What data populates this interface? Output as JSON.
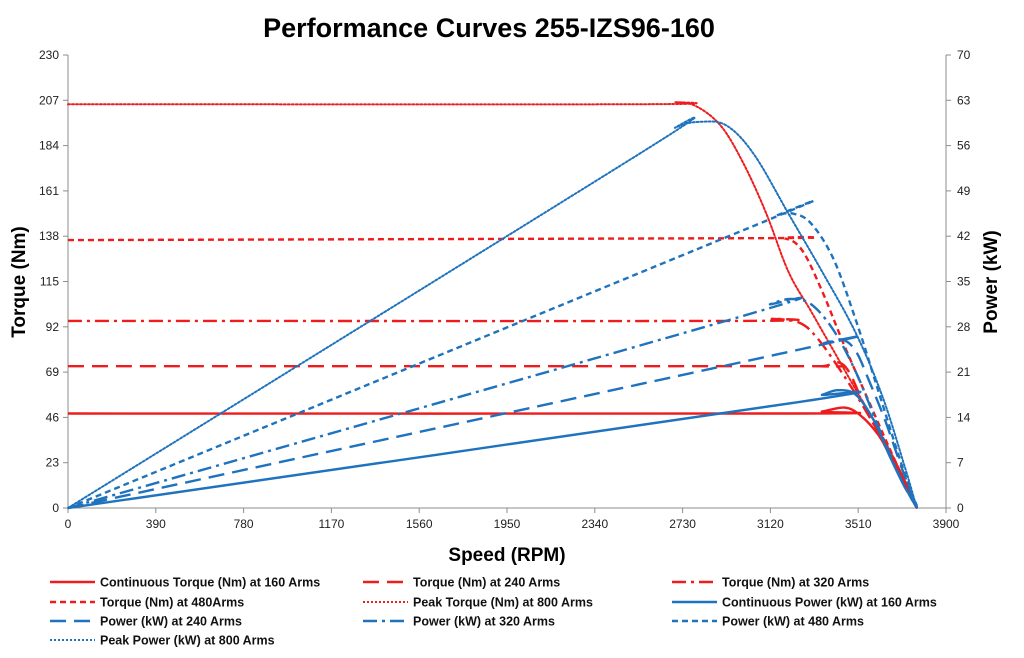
{
  "chart_data": {
    "type": "line",
    "title": "Performance Curves 255-IZS96-160",
    "xlabel": "Speed (RPM)",
    "ylabel": "Torque (Nm)",
    "y2label": "Power (kW)",
    "xlim": [
      0,
      3900
    ],
    "ylim": [
      0,
      230
    ],
    "y2lim": [
      0,
      70
    ],
    "x_ticks": [
      "0",
      "390",
      "780",
      "1170",
      "1560",
      "1950",
      "2340",
      "2730",
      "3120",
      "3510",
      "3900"
    ],
    "y_ticks": [
      "0",
      "23",
      "46",
      "69",
      "92",
      "115",
      "138",
      "161",
      "184",
      "207",
      "230"
    ],
    "y2_ticks": [
      "0",
      "7",
      "14",
      "21",
      "28",
      "35",
      "42",
      "49",
      "56",
      "63",
      "70"
    ],
    "grid": false,
    "legend_position": "bottom",
    "colors": {
      "torque": "#ee1c1c",
      "power": "#1f73be"
    },
    "series": [
      {
        "name": "Continuous Torque (Nm) at 160 Arms",
        "axis": "left",
        "color": "#ee1c1c",
        "style": "solid",
        "x": [
          0,
          3250,
          3350,
          3450,
          3520,
          3600,
          3680,
          3750,
          3770
        ],
        "y": [
          48,
          48,
          49,
          51,
          47,
          37,
          21,
          6,
          0
        ]
      },
      {
        "name": "Torque (Nm) at 240 Arms",
        "axis": "left",
        "color": "#ee1c1c",
        "style": "longdash",
        "x": [
          0,
          3150,
          3350,
          3420,
          3470,
          3530,
          3600,
          3680,
          3750,
          3770
        ],
        "y": [
          72,
          72,
          72,
          74,
          69,
          54,
          38,
          20,
          4,
          0
        ]
      },
      {
        "name": "Torque (Nm) at 320 Arms",
        "axis": "left",
        "color": "#ee1c1c",
        "style": "dashdot",
        "x": [
          0,
          2980,
          3130,
          3250,
          3330,
          3430,
          3530,
          3630,
          3720,
          3770
        ],
        "y": [
          95,
          95,
          96,
          94,
          86,
          70,
          52,
          32,
          12,
          0
        ]
      },
      {
        "name": "Torque (Nm) at 480Arms",
        "axis": "left",
        "color": "#ee1c1c",
        "style": "dash",
        "x": [
          0,
          3060,
          3180,
          3260,
          3350,
          3450,
          3550,
          3650,
          3730,
          3770
        ],
        "y": [
          136,
          137,
          137,
          131,
          110,
          82,
          56,
          30,
          10,
          0
        ]
      },
      {
        "name": "Peak Torque (Nm) at 800  Arms",
        "axis": "left",
        "color": "#ee1c1c",
        "style": "dot",
        "x": [
          0,
          2560,
          2700,
          2790,
          2900,
          3000,
          3100,
          3200,
          3300,
          3400,
          3500,
          3600,
          3700,
          3770
        ],
        "y": [
          205,
          205,
          206,
          204,
          194,
          175,
          150,
          120,
          100,
          80,
          60,
          40,
          18,
          0
        ]
      },
      {
        "name": "Continuous Power (kW) at 160 Arms",
        "axis": "right",
        "color": "#1f73be",
        "style": "solid",
        "x": [
          0,
          3250,
          3350,
          3420,
          3500,
          3580,
          3650,
          3720,
          3765,
          3770
        ],
        "y": [
          0,
          16.4,
          17.5,
          18.2,
          17.5,
          13.5,
          8,
          3,
          0.8,
          0
        ]
      },
      {
        "name": "Power (kW) at 240 Arms",
        "axis": "right",
        "color": "#1f73be",
        "style": "longdash",
        "x": [
          0,
          3250,
          3360,
          3440,
          3500,
          3560,
          3630,
          3700,
          3760,
          3770
        ],
        "y": [
          0,
          24.5,
          25.5,
          26,
          24.2,
          19.5,
          13.5,
          6.5,
          1,
          0
        ]
      },
      {
        "name": "Power (kW) at 320 Arms",
        "axis": "right",
        "color": "#1f73be",
        "style": "dashdot",
        "x": [
          0,
          3000,
          3120,
          3210,
          3300,
          3400,
          3500,
          3600,
          3700,
          3770
        ],
        "y": [
          0,
          29.7,
          31.5,
          32.3,
          31.5,
          27.5,
          21,
          12.5,
          4.5,
          0
        ]
      },
      {
        "name": "Power (kW) at 480 Arms",
        "axis": "right",
        "color": "#1f73be",
        "style": "dash",
        "x": [
          0,
          3060,
          3150,
          3220,
          3300,
          3400,
          3500,
          3600,
          3700,
          3770
        ],
        "y": [
          0,
          43.8,
          45.2,
          45.5,
          44,
          38.5,
          29,
          18,
          7,
          0
        ]
      },
      {
        "name": "Peak Power (kW) at 800 Arms",
        "axis": "right",
        "color": "#1f73be",
        "style": "dot",
        "x": [
          0,
          2550,
          2700,
          2820,
          2930,
          3050,
          3200,
          3350,
          3500,
          3620,
          3720,
          3770
        ],
        "y": [
          0,
          55,
          58.8,
          59.7,
          59,
          54.5,
          45.5,
          36.5,
          27,
          17,
          6,
          0
        ]
      }
    ]
  }
}
